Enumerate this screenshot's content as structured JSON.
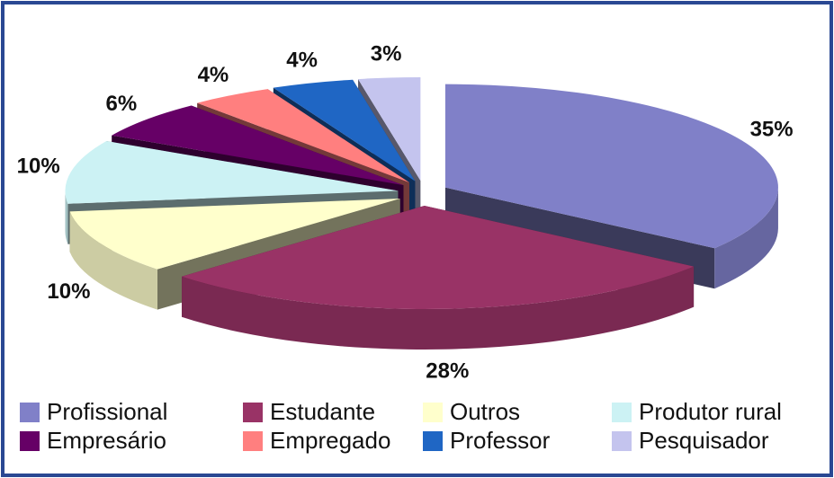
{
  "chart_data": {
    "type": "pie",
    "categories": [
      "Profissional",
      "Estudante",
      "Outros",
      "Produtor rural",
      "Empresário",
      "Empregado",
      "Professor",
      "Pesquisador"
    ],
    "values": [
      35,
      28,
      10,
      10,
      6,
      4,
      4,
      3
    ],
    "value_labels": [
      "35%",
      "28%",
      "10%",
      "10%",
      "6%",
      "4%",
      "4%",
      "3%"
    ],
    "colors": [
      "#8080c8",
      "#993366",
      "#ffffcc",
      "#ccf2f4",
      "#660066",
      "#ff7f7f",
      "#1f66c4",
      "#c4c4ee"
    ]
  }
}
